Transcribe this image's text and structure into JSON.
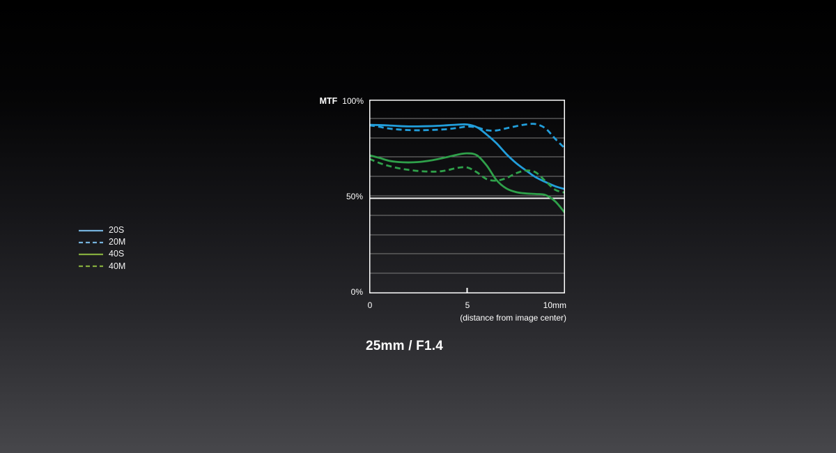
{
  "chart": {
    "y_axis_title": "MTF",
    "y_tick_top": "100%",
    "y_tick_mid": "50%",
    "y_tick_bottom": "0%",
    "x_tick_0": "0",
    "x_tick_5": "5",
    "x_tick_10": "10mm",
    "x_axis_caption": "(distance from image center)",
    "title": "25mm / F1.4",
    "border_color": "#ffffff",
    "gridline_color": "#7d7d7d",
    "emphasis_line_color": "#f5f5f5",
    "text_color": "#ffffff"
  },
  "legend": {
    "items": [
      {
        "label": "20S",
        "color": "#75B2DC",
        "dash": false
      },
      {
        "label": "20M",
        "color": "#75B2DC",
        "dash": true
      },
      {
        "label": "40S",
        "color": "#85AD3E",
        "dash": false
      },
      {
        "label": "40M",
        "color": "#85AD3E",
        "dash": true
      }
    ]
  },
  "chart_data": {
    "type": "line",
    "title": "25mm / F1.4",
    "xlabel": "(distance from image center)",
    "ylabel": "MTF",
    "x_unit": "mm",
    "y_unit": "%",
    "xlim": [
      0,
      10
    ],
    "ylim": [
      0,
      100
    ],
    "x_ticks": [
      0,
      5,
      10
    ],
    "gridlines_percent": [
      10,
      20,
      30,
      40,
      50,
      60,
      70,
      80,
      90
    ],
    "emphasis_percent": 50,
    "x": [
      0,
      0.5,
      1,
      1.5,
      2,
      2.5,
      3,
      3.5,
      4,
      4.5,
      5,
      5.5,
      6,
      6.5,
      7,
      7.5,
      8,
      8.5,
      9,
      9.5,
      10
    ],
    "series": [
      {
        "name": "20S",
        "color": "#229EDB",
        "style": "solid",
        "values": [
          87.0,
          86.9,
          86.7,
          86.4,
          86.2,
          86.2,
          86.3,
          86.5,
          86.8,
          87.1,
          87.2,
          85.8,
          82.0,
          77.5,
          72.0,
          67.3,
          63.5,
          60.0,
          57.5,
          55.3,
          53.8
        ]
      },
      {
        "name": "20M",
        "color": "#229EDB",
        "style": "dashed",
        "values": [
          86.8,
          86.0,
          85.1,
          84.6,
          84.3,
          84.2,
          84.3,
          84.5,
          84.8,
          85.4,
          86.1,
          85.7,
          84.2,
          84.1,
          85.2,
          86.3,
          87.2,
          87.4,
          85.2,
          79.8,
          74.8
        ]
      },
      {
        "name": "40S",
        "color": "#2FA04A",
        "style": "solid",
        "values": [
          71.3,
          70.0,
          68.5,
          67.8,
          67.6,
          67.8,
          68.4,
          69.3,
          70.4,
          71.6,
          72.3,
          71.3,
          66.0,
          58.5,
          54.2,
          52.3,
          51.6,
          51.3,
          50.8,
          47.5,
          41.5
        ]
      },
      {
        "name": "40M",
        "color": "#2FA04A",
        "style": "dashed",
        "values": [
          69.5,
          67.4,
          65.8,
          64.6,
          63.8,
          63.2,
          62.9,
          62.9,
          63.6,
          64.8,
          65.0,
          62.5,
          59.0,
          58.2,
          59.5,
          62.0,
          63.4,
          62.5,
          58.0,
          53.5,
          52.0
        ]
      }
    ]
  }
}
